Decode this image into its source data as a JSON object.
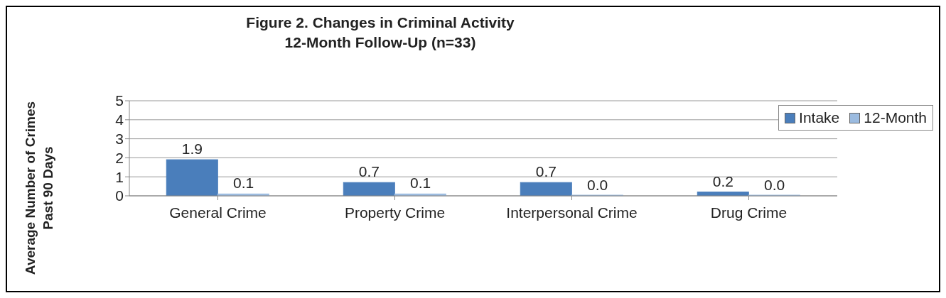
{
  "chart_data": {
    "type": "bar",
    "title": "Figure 2. Changes in Criminal Activity\n12-Month Follow-Up (n=33)",
    "ylabel": "Average Number of Crimes\nPast 90 Days",
    "categories": [
      "General Crime",
      "Property Crime",
      "Interpersonal Crime",
      "Drug Crime"
    ],
    "series": [
      {
        "name": "Intake",
        "color": "#4a7ebb",
        "values": [
          1.9,
          0.7,
          0.7,
          0.2
        ],
        "value_labels": [
          "1.9",
          "0.7",
          "0.7",
          "0.2"
        ]
      },
      {
        "name": "12-Month",
        "color": "#9bbbe0",
        "values": [
          0.1,
          0.1,
          0.0,
          0.0
        ],
        "value_labels": [
          "0.1",
          "0.1",
          "0.0",
          "0.0"
        ]
      }
    ],
    "ylim": [
      0,
      5
    ],
    "yticks": [
      0,
      1,
      2,
      3,
      4,
      5
    ],
    "grid": "y",
    "legend": "top right"
  }
}
